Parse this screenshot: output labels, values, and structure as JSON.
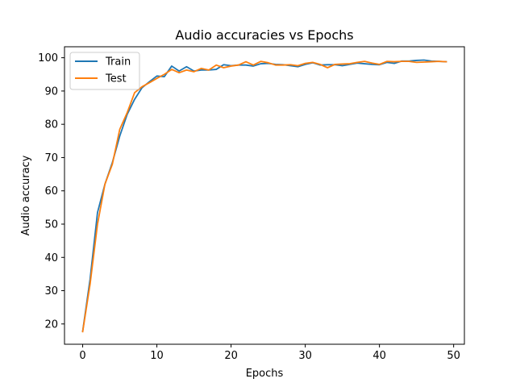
{
  "chart_data": {
    "type": "line",
    "title": "Audio accuracies vs Epochs",
    "xlabel": "Epochs",
    "ylabel": "Audio accuracy",
    "xlim": [
      -2.45,
      51.45
    ],
    "ylim": [
      13.9,
      103.3
    ],
    "xticks": [
      0,
      10,
      20,
      30,
      40,
      50
    ],
    "yticks": [
      20,
      30,
      40,
      50,
      60,
      70,
      80,
      90,
      100
    ],
    "grid": false,
    "legend_position": "top-left",
    "x": [
      0,
      1,
      2,
      3,
      4,
      5,
      6,
      7,
      8,
      9,
      10,
      11,
      12,
      13,
      14,
      15,
      16,
      17,
      18,
      19,
      20,
      21,
      22,
      23,
      24,
      25,
      26,
      27,
      28,
      29,
      30,
      31,
      32,
      33,
      34,
      35,
      36,
      37,
      38,
      39,
      40,
      41,
      42,
      43,
      44,
      45,
      46,
      47,
      48,
      49
    ],
    "series": [
      {
        "name": "Train",
        "color": "#1f77b4",
        "values": [
          17.8,
          33.5,
          53.5,
          62.0,
          68.5,
          76.5,
          83.0,
          87.5,
          91.0,
          92.8,
          94.5,
          94.3,
          97.5,
          96.0,
          97.3,
          96.0,
          96.3,
          96.3,
          96.5,
          97.9,
          97.6,
          97.8,
          97.8,
          97.5,
          98.2,
          98.3,
          98.0,
          97.9,
          97.6,
          97.3,
          98.0,
          98.5,
          97.8,
          97.9,
          97.9,
          97.6,
          98.0,
          98.4,
          98.2,
          98.0,
          97.9,
          98.6,
          98.3,
          99.0,
          99.0,
          99.2,
          99.3,
          99.0,
          98.9,
          98.8
        ]
      },
      {
        "name": "Test",
        "color": "#ff7f0e",
        "values": [
          17.7,
          32.0,
          50.0,
          62.0,
          68.0,
          78.5,
          83.5,
          89.5,
          91.3,
          92.5,
          93.8,
          95.0,
          96.5,
          95.5,
          96.3,
          95.8,
          96.8,
          96.3,
          97.8,
          97.0,
          97.5,
          97.8,
          98.8,
          97.8,
          98.9,
          98.5,
          97.8,
          97.8,
          97.9,
          97.6,
          98.3,
          98.6,
          98.0,
          97.0,
          98.0,
          98.1,
          98.2,
          98.6,
          98.9,
          98.4,
          98.0,
          98.9,
          98.8,
          98.9,
          98.9,
          98.6,
          98.7,
          98.8,
          98.9,
          98.8
        ]
      }
    ]
  }
}
